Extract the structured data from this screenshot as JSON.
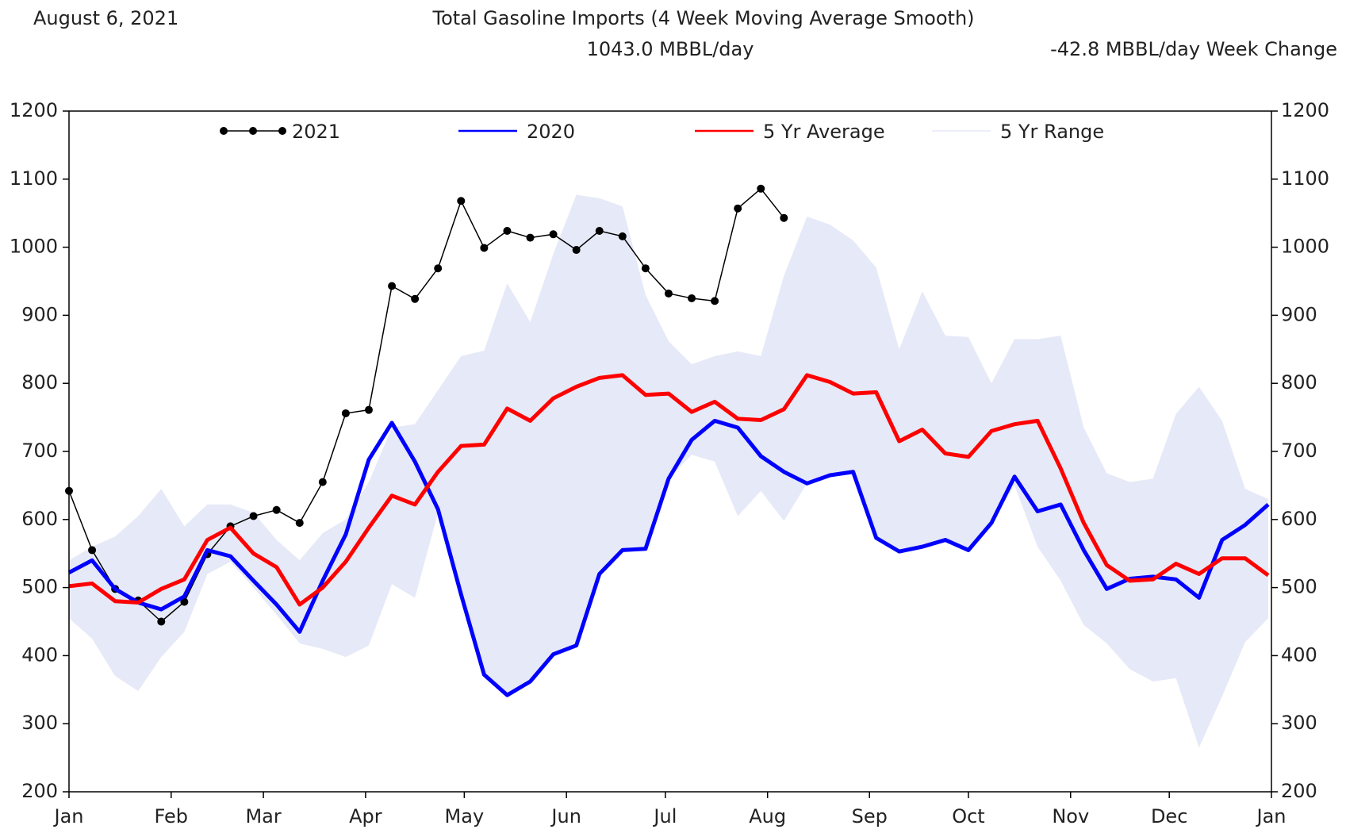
{
  "chart_data": {
    "type": "line",
    "date": "August 6, 2021",
    "title": "Total Gasoline Imports (4 Week Moving Average Smooth)",
    "current": "1043.0 MBBL/day",
    "change": "-42.8 MBBL/day Week Change",
    "x": [
      0,
      1,
      2,
      3,
      4,
      5,
      6,
      7,
      8,
      9,
      10,
      11,
      12,
      13,
      14,
      15,
      16,
      17,
      18,
      19,
      20,
      21,
      22,
      23,
      24,
      25,
      26,
      27,
      28,
      29,
      30,
      31,
      32,
      33,
      34,
      35,
      36,
      37,
      38,
      39,
      40,
      41,
      42,
      43,
      44,
      45,
      46,
      47,
      48,
      49,
      50,
      51,
      52
    ],
    "xlim": [
      0,
      52.14
    ],
    "xticks": [
      {
        "value": 0,
        "label": "Jan"
      },
      {
        "value": 4.43,
        "label": "Feb"
      },
      {
        "value": 8.43,
        "label": "Mar"
      },
      {
        "value": 12.86,
        "label": "Apr"
      },
      {
        "value": 17.14,
        "label": "May"
      },
      {
        "value": 21.57,
        "label": "Jun"
      },
      {
        "value": 25.86,
        "label": "Jul"
      },
      {
        "value": 30.29,
        "label": "Aug"
      },
      {
        "value": 34.71,
        "label": "Sep"
      },
      {
        "value": 39,
        "label": "Oct"
      },
      {
        "value": 43.43,
        "label": "Nov"
      },
      {
        "value": 47.71,
        "label": "Dec"
      },
      {
        "value": 52.14,
        "label": "Jan"
      }
    ],
    "ylim": [
      200,
      1200
    ],
    "yticks": [
      200,
      300,
      400,
      500,
      600,
      700,
      800,
      900,
      1000,
      1100,
      1200
    ],
    "y2lim": [
      200,
      1200
    ],
    "y2ticks": [
      200,
      300,
      400,
      500,
      600,
      700,
      800,
      900,
      1000,
      1100,
      1200
    ],
    "legend": "top",
    "series": [
      {
        "name": "2021",
        "color": "#000000",
        "values": [
          642,
          555,
          498,
          481,
          450,
          479,
          549,
          590,
          605,
          614,
          595,
          655,
          756,
          761,
          943,
          924,
          969,
          1068,
          999,
          1024,
          1014,
          1019,
          996,
          1024,
          1016,
          969,
          932,
          925,
          921,
          1057,
          1086,
          1043,
          null,
          null,
          null,
          null,
          null,
          null,
          null,
          null,
          null,
          null,
          null,
          null,
          null,
          null,
          null,
          null,
          null,
          null,
          null,
          null,
          null
        ]
      },
      {
        "name": "2020",
        "color": "#0000ff",
        "values": [
          522,
          540,
          498,
          478,
          468,
          487,
          555,
          546,
          510,
          475,
          435,
          510,
          578,
          688,
          742,
          685,
          615,
          490,
          372,
          342,
          362,
          402,
          415,
          520,
          555,
          557,
          660,
          717,
          745,
          735,
          693,
          670,
          653,
          665,
          670,
          573,
          553,
          560,
          570,
          555,
          595,
          663,
          612,
          622,
          555,
          498,
          513,
          516,
          512,
          485,
          570,
          592,
          622
        ]
      },
      {
        "name": "5 Yr Average",
        "color": "#ff0000",
        "values": [
          502,
          506,
          480,
          478,
          498,
          512,
          570,
          588,
          550,
          530,
          475,
          500,
          538,
          588,
          635,
          622,
          670,
          708,
          710,
          763,
          745,
          778,
          795,
          808,
          812,
          783,
          785,
          758,
          773,
          748,
          746,
          762,
          812,
          802,
          785,
          787,
          715,
          732,
          697,
          692,
          730,
          740,
          745,
          675,
          595,
          533,
          510,
          512,
          535,
          520,
          543,
          543,
          518
        ]
      },
      {
        "name": "5 Yr Range",
        "color": "#e6e9f7",
        "high": [
          540,
          560,
          575,
          605,
          645,
          590,
          622,
          622,
          610,
          570,
          540,
          580,
          600,
          655,
          735,
          740,
          790,
          840,
          848,
          947,
          890,
          990,
          1077,
          1072,
          1060,
          930,
          862,
          828,
          840,
          847,
          840,
          958,
          1045,
          1033,
          1010,
          970,
          850,
          935,
          870,
          868,
          800,
          865,
          865,
          870,
          735,
          668,
          655,
          660,
          755,
          795,
          745,
          645,
          630
        ],
        "low": [
          455,
          425,
          370,
          348,
          398,
          435,
          520,
          538,
          500,
          460,
          418,
          410,
          398,
          415,
          505,
          485,
          610,
          485,
          372,
          342,
          362,
          402,
          415,
          520,
          555,
          557,
          660,
          695,
          685,
          605,
          642,
          598,
          653,
          665,
          670,
          573,
          553,
          560,
          570,
          555,
          595,
          650,
          560,
          510,
          445,
          418,
          380,
          362,
          367,
          265,
          340,
          420,
          455
        ]
      }
    ]
  }
}
